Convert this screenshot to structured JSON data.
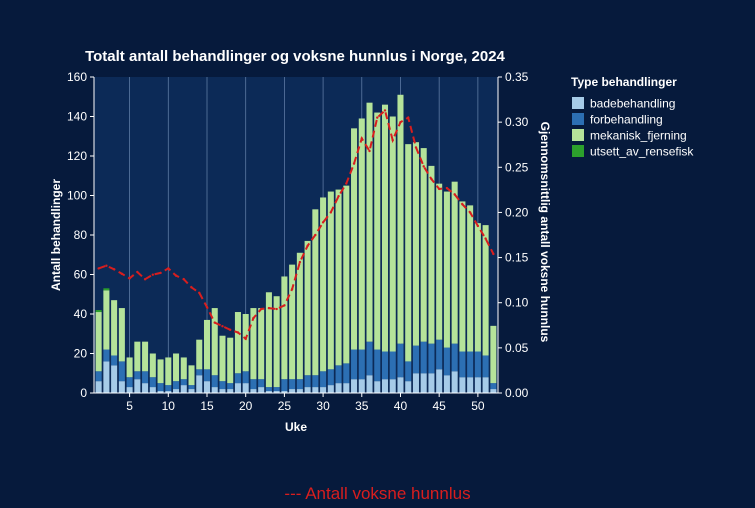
{
  "chart_data": {
    "type": "bar",
    "title": "Totalt antall behandlinger og voksne hunnlus i Norge, 2024",
    "xlabel": "Uke",
    "ylabel": "Antall behandlinger",
    "y2label": "Gjennomsnittlig antall voksne hunnlus",
    "ylim": [
      0,
      160
    ],
    "y2lim": [
      0,
      0.35
    ],
    "yticks": [
      "0",
      "20",
      "40",
      "60",
      "80",
      "100",
      "120",
      "140",
      "160"
    ],
    "y2ticks": [
      "0.00",
      "0.05",
      "0.10",
      "0.15",
      "0.20",
      "0.25",
      "0.30",
      "0.35"
    ],
    "xticks": [
      "5",
      "10",
      "15",
      "20",
      "25",
      "30",
      "35",
      "40",
      "45",
      "50"
    ],
    "xlim": [
      0.4,
      52.6
    ],
    "stacked": true,
    "grid": "vertical",
    "legend_title": "Type behandlinger",
    "legend_position": "right",
    "weeks": [
      1,
      2,
      3,
      4,
      5,
      6,
      7,
      8,
      9,
      10,
      11,
      12,
      13,
      14,
      15,
      16,
      17,
      18,
      19,
      20,
      21,
      22,
      23,
      24,
      25,
      26,
      27,
      28,
      29,
      30,
      31,
      32,
      33,
      34,
      35,
      36,
      37,
      38,
      39,
      40,
      41,
      42,
      43,
      44,
      45,
      46,
      47,
      48,
      49,
      50,
      51,
      52
    ],
    "series": [
      {
        "name": "badebehandling",
        "color": "#a6cbe8",
        "values": [
          6,
          16,
          14,
          6,
          3,
          7,
          5,
          3,
          1,
          1,
          2,
          4,
          2,
          9,
          6,
          3,
          2,
          2,
          5,
          5,
          2,
          3,
          1,
          1,
          1,
          2,
          2,
          3,
          3,
          3,
          4,
          5,
          5,
          7,
          7,
          9,
          6,
          7,
          7,
          8,
          6,
          10,
          10,
          10,
          12,
          9,
          11,
          8,
          8,
          8,
          8,
          2
        ]
      },
      {
        "name": "forbehandling",
        "color": "#2c6fb3",
        "values": [
          5,
          6,
          5,
          10,
          5,
          4,
          6,
          5,
          4,
          3,
          4,
          3,
          2,
          3,
          6,
          6,
          4,
          3,
          5,
          6,
          5,
          4,
          2,
          2,
          6,
          5,
          5,
          6,
          6,
          8,
          8,
          9,
          10,
          15,
          15,
          17,
          16,
          14,
          14,
          17,
          10,
          14,
          16,
          15,
          15,
          14,
          14,
          13,
          13,
          13,
          11,
          3
        ]
      },
      {
        "name": "mekanisk_fjerning",
        "color": "#b5e39a",
        "values": [
          30,
          30,
          28,
          27,
          10,
          15,
          15,
          12,
          12,
          14,
          14,
          11,
          10,
          15,
          25,
          34,
          23,
          23,
          31,
          29,
          36,
          36,
          48,
          46,
          52,
          58,
          64,
          68,
          84,
          88,
          90,
          89,
          90,
          112,
          117,
          121,
          120,
          125,
          119,
          126,
          110,
          103,
          98,
          90,
          79,
          79,
          82,
          76,
          74,
          65,
          66,
          29
        ]
      },
      {
        "name": "utsett_av_rensefisk",
        "color": "#2ca02c",
        "values": [
          1,
          1,
          0,
          0,
          0,
          0,
          0,
          0,
          0,
          0,
          0,
          0,
          0,
          0,
          0,
          0,
          0,
          0,
          0,
          0,
          0,
          0,
          0,
          0,
          0,
          0,
          0,
          0,
          0,
          0,
          0,
          0,
          0,
          0,
          0,
          0,
          0,
          0,
          0,
          0,
          0,
          0,
          0,
          0,
          0,
          0,
          0,
          0,
          0,
          0,
          0,
          0
        ]
      }
    ],
    "line": {
      "name": "Antall voksne hunnlus",
      "color": "#d81e1e",
      "style": "dashed",
      "axis": "right",
      "values": [
        0.138,
        0.141,
        0.137,
        0.132,
        0.127,
        0.134,
        0.126,
        0.131,
        0.133,
        0.138,
        0.13,
        0.126,
        0.117,
        0.111,
        0.095,
        0.078,
        0.074,
        0.07,
        0.067,
        0.06,
        0.083,
        0.093,
        0.094,
        0.093,
        0.097,
        0.115,
        0.145,
        0.163,
        0.175,
        0.189,
        0.2,
        0.218,
        0.232,
        0.254,
        0.282,
        0.268,
        0.305,
        0.313,
        0.28,
        0.3,
        0.305,
        0.272,
        0.251,
        0.237,
        0.226,
        0.227,
        0.22,
        0.209,
        0.2,
        0.185,
        0.171,
        0.154
      ]
    }
  },
  "legend_note": "--- Antall voksne hunnlus"
}
